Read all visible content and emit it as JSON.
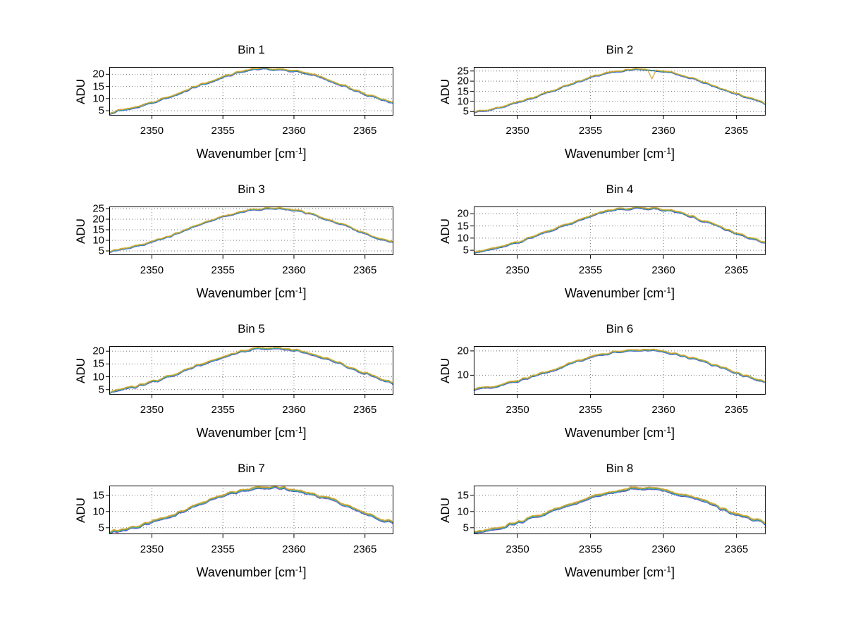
{
  "figure": {
    "background": "#ffffff"
  },
  "axes": {
    "ylabel": "ADU",
    "xlabel_pre": "Wavenumber [cm",
    "xlabel_sup": "-1",
    "xlabel_post": "]",
    "xlabel_plain": "Wavenumber [cm^-1]",
    "xlim": [
      2347,
      2367
    ],
    "xticks": [
      2350,
      2355,
      2360,
      2365
    ],
    "grid": "dotted",
    "grid_color": "#777777",
    "spine_color": "#000000"
  },
  "traces": [
    {
      "name": "spectrum-magenta",
      "color": "#c77fc7",
      "offset": -0.3
    },
    {
      "name": "spectrum-blue",
      "color": "#2a5bc7",
      "offset": -0.22
    },
    {
      "name": "spectrum-cyan",
      "color": "#3fb6c9",
      "offset": -0.05
    },
    {
      "name": "spectrum-green",
      "color": "#55a555",
      "offset": 0.08
    },
    {
      "name": "spectrum-orange",
      "color": "#e08a3c",
      "offset": 0.24
    },
    {
      "name": "spectrum-yellow",
      "color": "#cdb13d",
      "offset": 0.36
    }
  ],
  "chart_data": [
    {
      "type": "line",
      "title": "Bin 1",
      "ylabel": "ADU",
      "x_start": 2347,
      "x_step": 1,
      "yticks": [
        5,
        10,
        15,
        20
      ],
      "ylim": [
        3,
        23
      ],
      "peak_adu": 22.2,
      "peak_wavenumber": 2358,
      "values": [
        4.1,
        5.2,
        6.6,
        8.3,
        10.2,
        12.3,
        14.6,
        16.8,
        18.8,
        20.5,
        21.7,
        22.2,
        22.1,
        21.5,
        20.2,
        18.4,
        16.4,
        14.1,
        11.9,
        9.8,
        7.9
      ]
    },
    {
      "type": "line",
      "title": "Bin 2",
      "ylabel": "ADU",
      "x_start": 2347,
      "x_step": 1,
      "yticks": [
        5,
        10,
        15,
        20,
        25
      ],
      "ylim": [
        3,
        27
      ],
      "peak_adu": 25.7,
      "peak_wavenumber": 2358,
      "dip": {
        "wavenumber": 2359.2,
        "depth": 4.5
      },
      "values": [
        4.6,
        5.8,
        7.4,
        9.4,
        11.7,
        14.1,
        16.8,
        19.3,
        21.7,
        23.7,
        25.0,
        25.7,
        25.6,
        24.8,
        23.3,
        21.3,
        18.9,
        16.3,
        13.6,
        11.2,
        8.9
      ]
    },
    {
      "type": "line",
      "title": "Bin 3",
      "ylabel": "ADU",
      "x_start": 2347,
      "x_step": 1,
      "yticks": [
        5,
        10,
        15,
        20,
        25
      ],
      "ylim": [
        3,
        26
      ],
      "peak_adu": 25.1,
      "peak_wavenumber": 2358,
      "values": [
        4.5,
        5.7,
        7.3,
        9.2,
        11.4,
        13.8,
        16.4,
        18.9,
        21.2,
        23.1,
        24.5,
        25.1,
        25.0,
        24.3,
        22.8,
        20.8,
        18.4,
        15.9,
        13.3,
        10.9,
        8.8
      ]
    },
    {
      "type": "line",
      "title": "Bin 4",
      "ylabel": "ADU",
      "x_start": 2347,
      "x_step": 1,
      "yticks": [
        5,
        10,
        15,
        20
      ],
      "ylim": [
        3,
        23
      ],
      "peak_adu": 22.4,
      "peak_wavenumber": 2358,
      "values": [
        4.1,
        5.3,
        6.6,
        8.3,
        10.3,
        12.4,
        14.7,
        16.9,
        19.0,
        20.7,
        21.8,
        22.4,
        22.3,
        21.7,
        20.4,
        18.6,
        16.5,
        14.3,
        12.0,
        9.9,
        7.9
      ]
    },
    {
      "type": "line",
      "title": "Bin 5",
      "ylabel": "ADU",
      "x_start": 2347,
      "x_step": 1,
      "yticks": [
        5,
        10,
        15,
        20
      ],
      "ylim": [
        3,
        22
      ],
      "peak_adu": 21.1,
      "peak_wavenumber": 2358,
      "values": [
        4.0,
        5.0,
        6.3,
        7.9,
        9.7,
        11.7,
        13.9,
        16.0,
        17.9,
        19.5,
        20.6,
        21.1,
        21.0,
        20.4,
        19.2,
        17.5,
        15.6,
        13.5,
        11.3,
        9.3,
        7.5
      ]
    },
    {
      "type": "line",
      "title": "Bin 6",
      "ylabel": "ADU",
      "x_start": 2347,
      "x_step": 1,
      "yticks": [
        10,
        20
      ],
      "ylim": [
        2,
        22
      ],
      "peak_adu": 20.3,
      "peak_wavenumber": 2358,
      "values": [
        3.9,
        4.9,
        6.1,
        7.6,
        9.4,
        11.3,
        13.4,
        15.4,
        17.2,
        18.7,
        19.8,
        20.3,
        20.2,
        19.6,
        18.5,
        16.9,
        15.0,
        13.0,
        10.9,
        9.0,
        7.3
      ]
    },
    {
      "type": "line",
      "title": "Bin 7",
      "ylabel": "ADU",
      "x_start": 2347,
      "x_step": 1,
      "yticks": [
        5,
        10,
        15
      ],
      "ylim": [
        3,
        18
      ],
      "peak_adu": 17.4,
      "peak_wavenumber": 2358,
      "values": [
        3.5,
        4.3,
        5.4,
        6.7,
        8.1,
        9.8,
        11.5,
        13.2,
        14.7,
        16.0,
        16.9,
        17.4,
        17.3,
        16.8,
        15.8,
        14.4,
        12.9,
        11.2,
        9.4,
        7.8,
        6.4
      ]
    },
    {
      "type": "line",
      "title": "Bin 8",
      "ylabel": "ADU",
      "x_start": 2347,
      "x_step": 1,
      "yticks": [
        5,
        10,
        15
      ],
      "ylim": [
        3,
        18
      ],
      "peak_adu": 17.0,
      "peak_wavenumber": 2358,
      "values": [
        3.5,
        4.3,
        5.3,
        6.5,
        8.0,
        9.6,
        11.2,
        12.9,
        14.4,
        15.6,
        16.5,
        17.0,
        16.9,
        16.4,
        15.4,
        14.1,
        12.6,
        10.9,
        9.2,
        7.7,
        6.3
      ]
    }
  ]
}
